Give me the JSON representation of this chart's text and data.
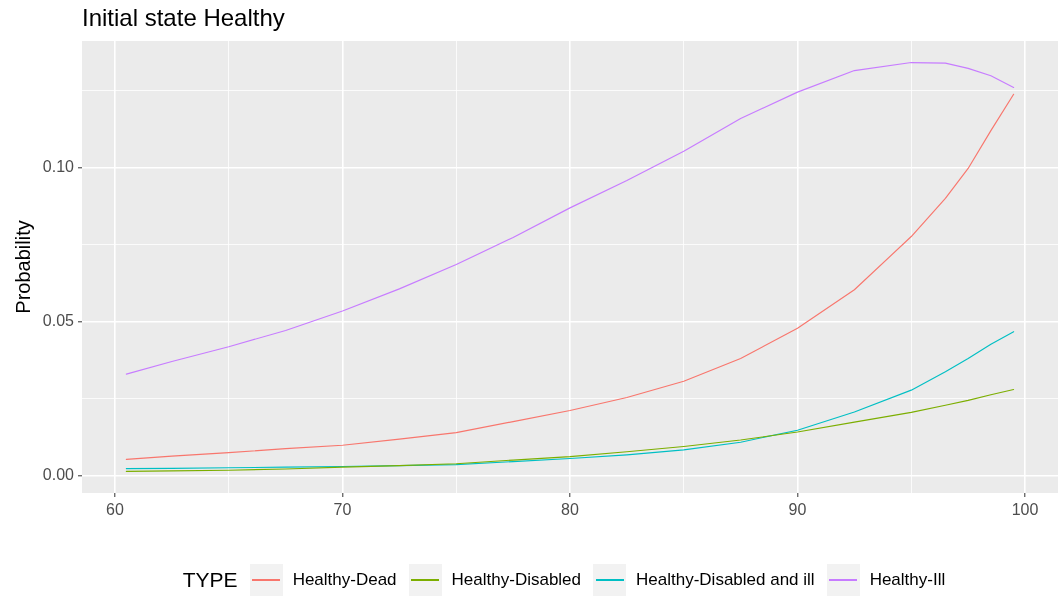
{
  "chart_data": {
    "type": "line",
    "title": "Initial state Healthy",
    "ylabel": "Probability",
    "legend_title": "TYPE",
    "x": [
      60.5,
      62.5,
      65,
      67.5,
      70,
      72.5,
      75,
      77.5,
      80,
      82.5,
      85,
      87.5,
      90,
      92.5,
      95,
      96.5,
      97.5,
      98.5,
      99.5
    ],
    "series": [
      {
        "name": "Healthy-Dead",
        "color": "#f8766d",
        "values": [
          0.0052,
          0.0063,
          0.0074,
          0.0087,
          0.0098,
          0.0118,
          0.0139,
          0.0175,
          0.0211,
          0.0253,
          0.0306,
          0.038,
          0.0478,
          0.0603,
          0.0776,
          0.09,
          0.0997,
          0.112,
          0.1238
        ]
      },
      {
        "name": "Healthy-Disabled",
        "color": "#7cae00",
        "values": [
          0.0013,
          0.0015,
          0.0017,
          0.0021,
          0.0027,
          0.0032,
          0.0038,
          0.005,
          0.0061,
          0.0077,
          0.0094,
          0.0115,
          0.0141,
          0.0173,
          0.0205,
          0.0228,
          0.0244,
          0.0262,
          0.0279
        ]
      },
      {
        "name": "Healthy-Disabled and ill",
        "color": "#00bfc4",
        "values": [
          0.0022,
          0.0023,
          0.0025,
          0.0027,
          0.0029,
          0.0032,
          0.0035,
          0.0045,
          0.0055,
          0.0067,
          0.0083,
          0.0108,
          0.0147,
          0.0206,
          0.0277,
          0.0337,
          0.038,
          0.0426,
          0.0467
        ]
      },
      {
        "name": "Healthy-Ill",
        "color": "#c77cff",
        "values": [
          0.0329,
          0.037,
          0.0418,
          0.0471,
          0.0534,
          0.0606,
          0.0685,
          0.0773,
          0.0869,
          0.0958,
          0.1053,
          0.1159,
          0.1245,
          0.1315,
          0.1341,
          0.1339,
          0.1322,
          0.1298,
          0.126
        ]
      }
    ],
    "xlim": [
      58.55,
      101.45
    ],
    "ylim": [
      -0.0057,
      0.1411
    ],
    "xticks": [
      60,
      {
        "value": 65,
        "label": null
      },
      70,
      {
        "value": 75,
        "label": null
      },
      80,
      {
        "value": 85,
        "label": null
      },
      90,
      {
        "value": 95,
        "label": null
      },
      100
    ],
    "yticks": [
      {
        "value": 0,
        "label": "0.00"
      },
      {
        "value": 0.025,
        "label": null
      },
      {
        "value": 0.05,
        "label": "0.05"
      },
      {
        "value": 0.075,
        "label": null
      },
      {
        "value": 0.1,
        "label": "0.10"
      },
      {
        "value": 0.125,
        "label": null
      }
    ],
    "grid": true,
    "legend": "bottom"
  }
}
